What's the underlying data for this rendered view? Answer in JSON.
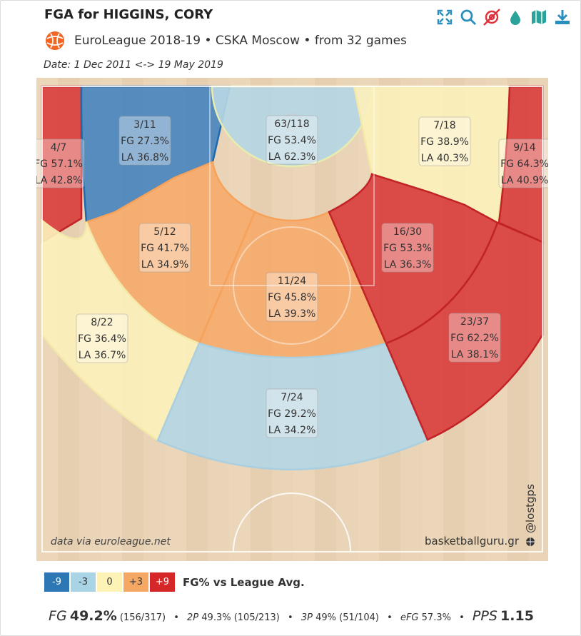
{
  "header": {
    "title": "FGA for HIGGINS, CORY",
    "subtitle": "EuroLeague 2018-19 • CSKA Moscow • from 32 games",
    "date_range": "Date: 1 Dec 2011 <-> 19 May 2019"
  },
  "toolbar": {
    "icons": [
      "expand-icon",
      "search-icon",
      "hide-icon",
      "drop-icon",
      "map-icon",
      "download-icon"
    ]
  },
  "court": {
    "credit_left": "data via euroleague.net",
    "credit_right": "basketballguru.gr",
    "watermark": "@lostgps"
  },
  "legend": {
    "items": [
      {
        "label": "-9",
        "color": "#2d77b5",
        "text_color": "#ffffff"
      },
      {
        "label": "-3",
        "color": "#a9d4e6",
        "text_color": "#333333"
      },
      {
        "label": "0",
        "color": "#fdf3b7",
        "text_color": "#333333"
      },
      {
        "label": "+3",
        "color": "#f5a864",
        "text_color": "#333333"
      },
      {
        "label": "+9",
        "color": "#d62728",
        "text_color": "#ffffff"
      }
    ],
    "caption": "FG% vs League Avg."
  },
  "chart_data": {
    "type": "heatmap",
    "zones": [
      {
        "zone": "left-corner-three",
        "made": 4,
        "att": 7,
        "fga_text": "4/7",
        "fg_text": "FG 57.1%",
        "la_text": "LA 42.8%",
        "fg_pct": 57.1,
        "la_pct": 42.8,
        "color": "#d9403f"
      },
      {
        "zone": "left-short-baseline",
        "made": 3,
        "att": 11,
        "fga_text": "3/11",
        "fg_text": "FG 27.3%",
        "la_text": "LA 36.8%",
        "fg_pct": 27.3,
        "la_pct": 36.8,
        "color": "#4a86be"
      },
      {
        "zone": "restricted-area",
        "made": 63,
        "att": 118,
        "fga_text": "63/118",
        "fg_text": "FG 53.4%",
        "la_text": "LA 62.3%",
        "fg_pct": 53.4,
        "la_pct": 62.3,
        "color": "#b5d6e3"
      },
      {
        "zone": "right-short-baseline",
        "made": 7,
        "att": 18,
        "fga_text": "7/18",
        "fg_text": "FG 38.9%",
        "la_text": "LA 40.3%",
        "fg_pct": 38.9,
        "la_pct": 40.3,
        "color": "#fbf0bb"
      },
      {
        "zone": "right-corner-three",
        "made": 9,
        "att": 14,
        "fga_text": "9/14",
        "fg_text": "FG 64.3%",
        "la_text": "LA 40.9%",
        "fg_pct": 64.3,
        "la_pct": 40.9,
        "color": "#d9403f"
      },
      {
        "zone": "left-mid-range",
        "made": 5,
        "att": 12,
        "fga_text": "5/12",
        "fg_text": "FG 41.7%",
        "la_text": "LA 34.9%",
        "fg_pct": 41.7,
        "la_pct": 34.9,
        "color": "#f5ab6c"
      },
      {
        "zone": "center-mid-range",
        "made": 11,
        "att": 24,
        "fga_text": "11/24",
        "fg_text": "FG 45.8%",
        "la_text": "LA 39.3%",
        "fg_pct": 45.8,
        "la_pct": 39.3,
        "color": "#f5ab6c"
      },
      {
        "zone": "right-mid-range",
        "made": 16,
        "att": 30,
        "fga_text": "16/30",
        "fg_text": "FG 53.3%",
        "la_text": "LA 36.3%",
        "fg_pct": 53.3,
        "la_pct": 36.3,
        "color": "#d9403f"
      },
      {
        "zone": "left-wing-three",
        "made": 8,
        "att": 22,
        "fga_text": "8/22",
        "fg_text": "FG 36.4%",
        "la_text": "LA 36.7%",
        "fg_pct": 36.4,
        "la_pct": 36.7,
        "color": "#fbf0bb"
      },
      {
        "zone": "top-key-three",
        "made": 7,
        "att": 24,
        "fga_text": "7/24",
        "fg_text": "FG 29.2%",
        "la_text": "LA 34.2%",
        "fg_pct": 29.2,
        "la_pct": 34.2,
        "color": "#b5d6e3"
      },
      {
        "zone": "right-wing-three",
        "made": 23,
        "att": 37,
        "fga_text": "23/37",
        "fg_text": "FG 62.2%",
        "la_text": "LA 38.1%",
        "fg_pct": 62.2,
        "la_pct": 38.1,
        "color": "#d9403f"
      }
    ]
  },
  "footer": {
    "fg_label": "FG",
    "fg_pct": "49.2%",
    "fg_count": "(156/317)",
    "two_label": "2P",
    "two_value": "49.3% (105/213)",
    "three_label": "3P",
    "three_value": "49% (51/104)",
    "efg_label": "eFG",
    "efg_value": "57.3%",
    "pps_label": "PPS",
    "pps_value": "1.15"
  }
}
